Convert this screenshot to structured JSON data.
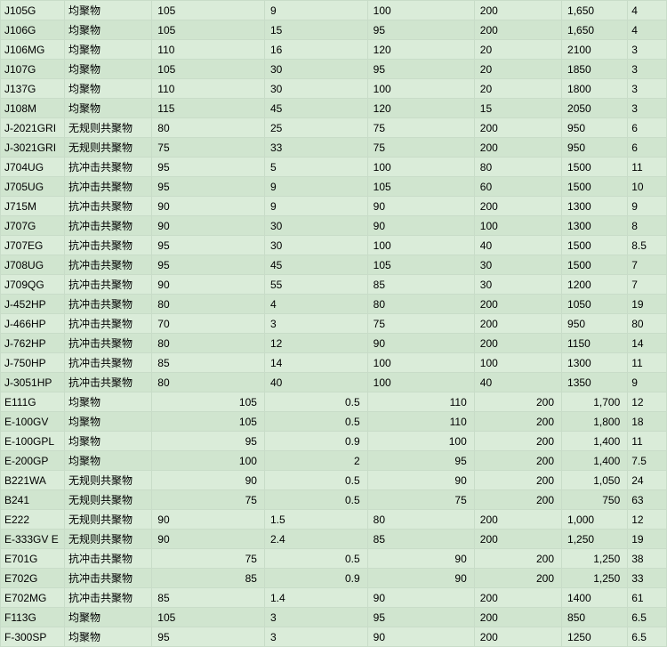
{
  "table": {
    "rows": [
      {
        "align": "left",
        "cells": [
          "J105G",
          "均聚物",
          "105",
          "9",
          "100",
          "200",
          "1,650",
          "4"
        ]
      },
      {
        "align": "left",
        "cells": [
          "J106G",
          "均聚物",
          "105",
          "15",
          "95",
          "200",
          "1,650",
          "4"
        ]
      },
      {
        "align": "left",
        "cells": [
          "J106MG",
          "均聚物",
          "110",
          "16",
          "120",
          "20",
          "2100",
          "3"
        ]
      },
      {
        "align": "left",
        "cells": [
          "J107G",
          "均聚物",
          "105",
          "30",
          "95",
          "20",
          "1850",
          "3"
        ]
      },
      {
        "align": "left",
        "cells": [
          "J137G",
          "均聚物",
          "110",
          "30",
          "100",
          "20",
          "1800",
          "3"
        ]
      },
      {
        "align": "left",
        "cells": [
          "J108M",
          "均聚物",
          "115",
          "45",
          "120",
          "15",
          "2050",
          "3"
        ]
      },
      {
        "align": "left",
        "cells": [
          "J-2021GRI",
          "无规则共聚物",
          "80",
          "25",
          "75",
          "200",
          "950",
          "6"
        ]
      },
      {
        "align": "left",
        "cells": [
          "J-3021GRI",
          "无规则共聚物",
          "75",
          "33",
          "75",
          "200",
          "950",
          "6"
        ]
      },
      {
        "align": "left",
        "cells": [
          "J704UG",
          "抗冲击共聚物",
          "95",
          "5",
          "100",
          "80",
          "1500",
          "11"
        ]
      },
      {
        "align": "left",
        "cells": [
          "J705UG",
          "抗冲击共聚物",
          "95",
          "9",
          "105",
          "60",
          "1500",
          "10"
        ]
      },
      {
        "align": "left",
        "cells": [
          "J715M",
          "抗冲击共聚物",
          "90",
          "9",
          "90",
          "200",
          "1300",
          "9"
        ]
      },
      {
        "align": "left",
        "cells": [
          "J707G",
          "抗冲击共聚物",
          "90",
          "30",
          "90",
          "100",
          "1300",
          "8"
        ]
      },
      {
        "align": "left",
        "cells": [
          "J707EG",
          "抗冲击共聚物",
          "95",
          "30",
          "100",
          "40",
          "1500",
          "8.5"
        ]
      },
      {
        "align": "left",
        "cells": [
          "J708UG",
          "抗冲击共聚物",
          "95",
          "45",
          "105",
          "30",
          "1500",
          "7"
        ]
      },
      {
        "align": "left",
        "cells": [
          "J709QG",
          "抗冲击共聚物",
          "90",
          "55",
          "85",
          "30",
          "1200",
          "7"
        ]
      },
      {
        "align": "left",
        "cells": [
          "J-452HP",
          "抗冲击共聚物",
          "80",
          "4",
          "80",
          "200",
          "1050",
          "19"
        ]
      },
      {
        "align": "left",
        "cells": [
          "J-466HP",
          "抗冲击共聚物",
          "70",
          "3",
          "75",
          "200",
          "950",
          "80"
        ]
      },
      {
        "align": "left",
        "cells": [
          "J-762HP",
          "抗冲击共聚物",
          "80",
          "12",
          "90",
          "200",
          "1150",
          "14"
        ]
      },
      {
        "align": "left",
        "cells": [
          "J-750HP",
          "抗冲击共聚物",
          "85",
          "14",
          "100",
          "100",
          "1300",
          "11"
        ]
      },
      {
        "align": "left",
        "cells": [
          "J-3051HP",
          "抗冲击共聚物",
          "80",
          "40",
          "100",
          "40",
          "1350",
          "9"
        ]
      },
      {
        "align": "right",
        "cells": [
          "E111G",
          "均聚物",
          "105",
          "0.5",
          "110",
          "200",
          "1,700",
          "12"
        ]
      },
      {
        "align": "right",
        "cells": [
          "E-100GV",
          "均聚物",
          "105",
          "0.5",
          "110",
          "200",
          "1,800",
          "18"
        ]
      },
      {
        "align": "right",
        "cells": [
          "E-100GPL",
          "均聚物",
          "95",
          "0.9",
          "100",
          "200",
          "1,400",
          "11"
        ]
      },
      {
        "align": "right",
        "cells": [
          "E-200GP",
          "均聚物",
          "100",
          "2",
          "95",
          "200",
          "1,400",
          "7.5"
        ]
      },
      {
        "align": "right",
        "cells": [
          "B221WA",
          "无规则共聚物",
          "90",
          "0.5",
          "90",
          "200",
          "1,050",
          "24"
        ]
      },
      {
        "align": "right",
        "cells": [
          "B241",
          "无规则共聚物",
          "75",
          "0.5",
          "75",
          "200",
          "750",
          "63"
        ]
      },
      {
        "align": "left",
        "cells": [
          "E222",
          "无规则共聚物",
          "90",
          "1.5",
          "80",
          "200",
          "1,000",
          "12"
        ]
      },
      {
        "align": "left",
        "cells": [
          "E-333GV E",
          "无规则共聚物",
          "90",
          "2.4",
          "85",
          "200",
          "1,250",
          "19"
        ]
      },
      {
        "align": "right",
        "cells": [
          "E701G",
          "抗冲击共聚物",
          "75",
          "0.5",
          "90",
          "200",
          "1,250",
          "38"
        ]
      },
      {
        "align": "right",
        "cells": [
          "E702G",
          "抗冲击共聚物",
          "85",
          "0.9",
          "90",
          "200",
          "1,250",
          "33"
        ]
      },
      {
        "align": "left",
        "cells": [
          "E702MG",
          "抗冲击共聚物",
          "85",
          "1.4",
          "90",
          "200",
          "1400",
          "61"
        ]
      },
      {
        "align": "left",
        "cells": [
          "F113G",
          "均聚物",
          "105",
          "3",
          "95",
          "200",
          "850",
          "6.5"
        ]
      },
      {
        "align": "left",
        "cells": [
          "F-300SP",
          "均聚物",
          "95",
          "3",
          "90",
          "200",
          "1250",
          "6.5"
        ]
      }
    ]
  }
}
